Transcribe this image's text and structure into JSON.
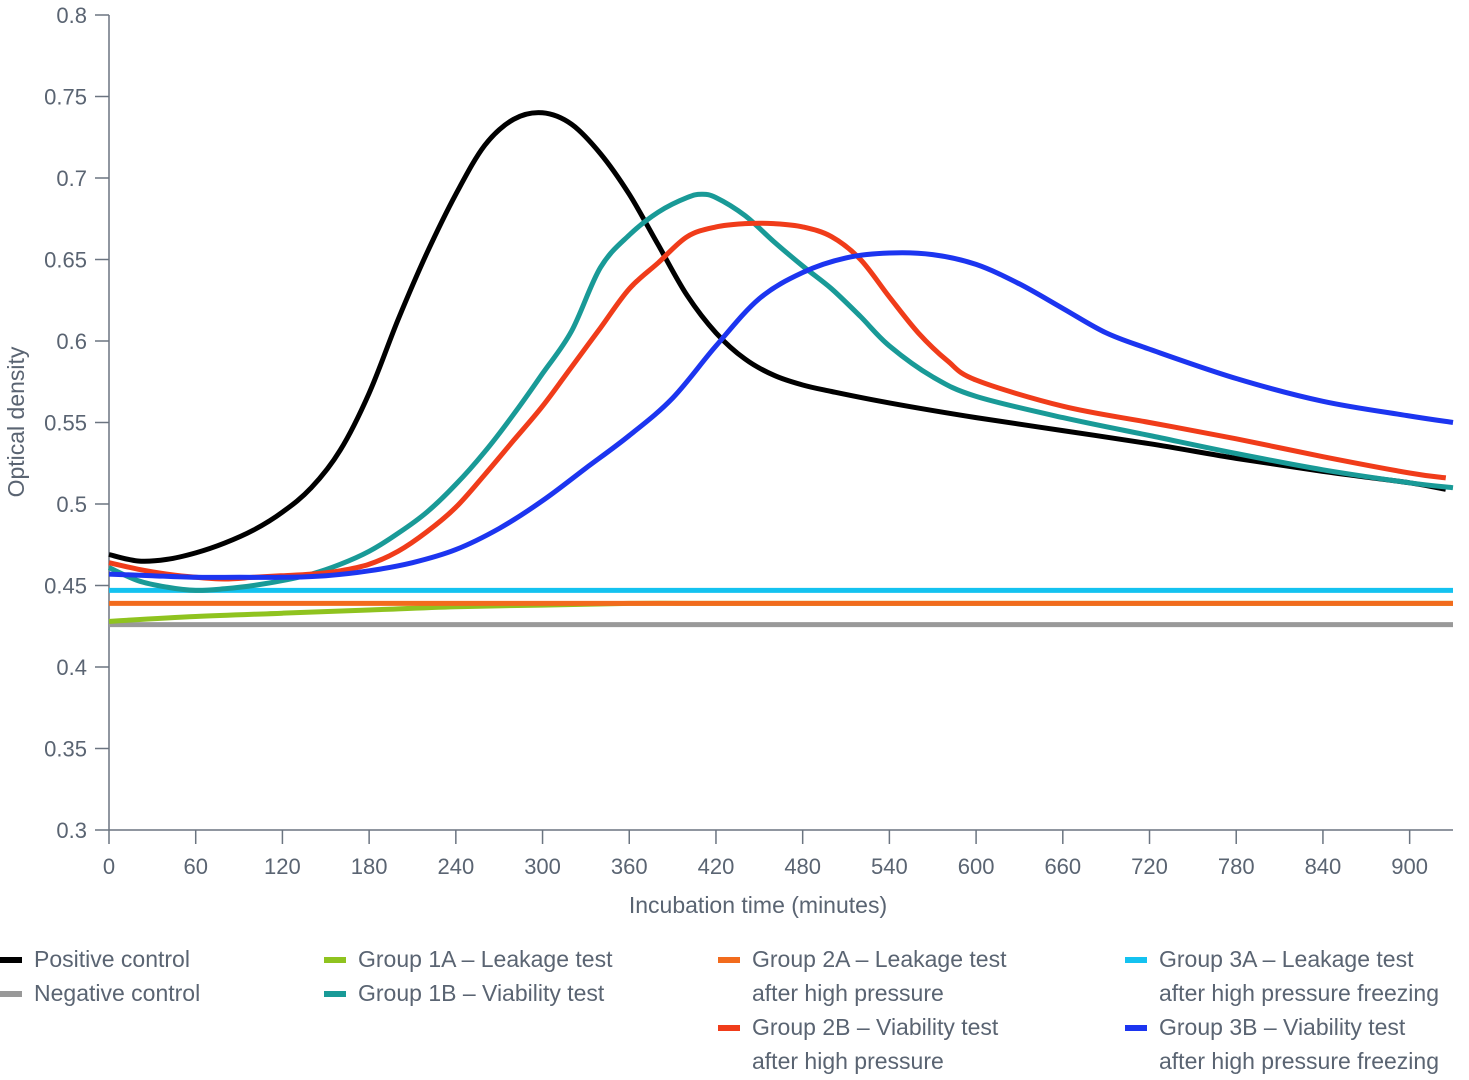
{
  "chart_data": {
    "type": "line",
    "xlabel": "Incubation time (minutes)",
    "ylabel": "Optical density",
    "xlim": [
      0,
      930
    ],
    "ylim": [
      0.3,
      0.8
    ],
    "xticks": [
      0,
      60,
      120,
      180,
      240,
      300,
      360,
      420,
      480,
      540,
      600,
      660,
      720,
      780,
      840,
      900
    ],
    "yticks": [
      0.3,
      0.35,
      0.4,
      0.45,
      0.5,
      0.55,
      0.6,
      0.65,
      0.7,
      0.75,
      0.8
    ],
    "ytick_labels": [
      "0.3",
      "0.35",
      "0.4",
      "0.45",
      "0.5",
      "0.55",
      "0.6",
      "0.65",
      "0.7",
      "0.75",
      "0.8"
    ],
    "grid": false,
    "legend_position": "bottom",
    "series": [
      {
        "name": "Positive control",
        "color": "#000000",
        "x": [
          0,
          20,
          40,
          60,
          80,
          100,
          120,
          140,
          160,
          180,
          200,
          220,
          240,
          260,
          280,
          300,
          320,
          340,
          360,
          380,
          400,
          420,
          440,
          460,
          480,
          500,
          540,
          600,
          660,
          720,
          780,
          840,
          900,
          925
        ],
        "y": [
          0.469,
          0.465,
          0.466,
          0.47,
          0.476,
          0.484,
          0.495,
          0.51,
          0.533,
          0.568,
          0.613,
          0.654,
          0.69,
          0.72,
          0.736,
          0.74,
          0.733,
          0.715,
          0.69,
          0.659,
          0.628,
          0.605,
          0.589,
          0.579,
          0.573,
          0.569,
          0.562,
          0.553,
          0.545,
          0.537,
          0.528,
          0.52,
          0.513,
          0.509
        ]
      },
      {
        "name": "Negative control",
        "color": "#999999",
        "x": [
          0,
          930
        ],
        "y": [
          0.426,
          0.426
        ]
      },
      {
        "name": "Group 1A – Leakage test",
        "color": "#8fc31f",
        "x": [
          0,
          60,
          120,
          180,
          240,
          300,
          360,
          420,
          480,
          600,
          720,
          840,
          930
        ],
        "y": [
          0.428,
          0.431,
          0.433,
          0.435,
          0.437,
          0.438,
          0.439,
          0.439,
          0.439,
          0.439,
          0.439,
          0.439,
          0.439
        ]
      },
      {
        "name": "Group 1B – Viability test",
        "color": "#199a97",
        "x": [
          0,
          20,
          40,
          60,
          80,
          100,
          120,
          140,
          160,
          180,
          200,
          220,
          240,
          260,
          280,
          300,
          320,
          340,
          360,
          380,
          400,
          410,
          420,
          440,
          460,
          480,
          500,
          520,
          540,
          570,
          600,
          660,
          720,
          780,
          840,
          900,
          930
        ],
        "y": [
          0.461,
          0.453,
          0.449,
          0.447,
          0.448,
          0.45,
          0.453,
          0.457,
          0.463,
          0.471,
          0.482,
          0.495,
          0.512,
          0.532,
          0.555,
          0.58,
          0.606,
          0.645,
          0.665,
          0.679,
          0.688,
          0.69,
          0.688,
          0.677,
          0.661,
          0.646,
          0.632,
          0.615,
          0.597,
          0.578,
          0.566,
          0.553,
          0.542,
          0.531,
          0.521,
          0.513,
          0.51
        ]
      },
      {
        "name": "Group 2A – Leakage test after high pressure",
        "color": "#f26b1d",
        "x": [
          0,
          930
        ],
        "y": [
          0.439,
          0.439
        ]
      },
      {
        "name": "Group 2B – Viability test after high pressure",
        "color": "#f03c1a",
        "x": [
          0,
          20,
          40,
          60,
          80,
          100,
          120,
          140,
          160,
          180,
          200,
          220,
          240,
          260,
          280,
          300,
          320,
          340,
          360,
          380,
          400,
          420,
          440,
          460,
          480,
          500,
          520,
          540,
          560,
          580,
          600,
          660,
          720,
          780,
          840,
          900,
          925
        ],
        "y": [
          0.464,
          0.46,
          0.457,
          0.455,
          0.454,
          0.455,
          0.456,
          0.457,
          0.459,
          0.463,
          0.471,
          0.483,
          0.498,
          0.518,
          0.539,
          0.56,
          0.584,
          0.608,
          0.632,
          0.648,
          0.664,
          0.67,
          0.672,
          0.672,
          0.67,
          0.664,
          0.65,
          0.627,
          0.605,
          0.588,
          0.576,
          0.56,
          0.55,
          0.54,
          0.529,
          0.519,
          0.516
        ]
      },
      {
        "name": "Group 3A – Leakage test after high pressure freezing",
        "color": "#14c2f0",
        "x": [
          0,
          930
        ],
        "y": [
          0.447,
          0.447
        ]
      },
      {
        "name": "Group 3B – Viability test after high pressure freezing",
        "color": "#1c35f0",
        "x": [
          0,
          30,
          60,
          90,
          120,
          150,
          180,
          210,
          240,
          270,
          300,
          330,
          360,
          390,
          420,
          450,
          480,
          510,
          540,
          570,
          600,
          630,
          660,
          690,
          720,
          780,
          840,
          900,
          930
        ],
        "y": [
          0.457,
          0.456,
          0.455,
          0.455,
          0.455,
          0.456,
          0.459,
          0.464,
          0.472,
          0.485,
          0.502,
          0.522,
          0.542,
          0.565,
          0.597,
          0.626,
          0.642,
          0.651,
          0.654,
          0.653,
          0.647,
          0.635,
          0.62,
          0.605,
          0.595,
          0.577,
          0.563,
          0.554,
          0.55
        ]
      }
    ]
  },
  "legend": {
    "items": [
      {
        "lines": [
          "Positive control"
        ],
        "color": "#000000"
      },
      {
        "lines": [
          "Negative control"
        ],
        "color": "#999999"
      },
      {
        "lines": [
          "Group 1A – Leakage test"
        ],
        "color": "#8fc31f"
      },
      {
        "lines": [
          "Group 1B – Viability test"
        ],
        "color": "#199a97"
      },
      {
        "lines": [
          "Group 2A – Leakage test",
          "after high pressure"
        ],
        "color": "#f26b1d"
      },
      {
        "lines": [
          "Group 2B – Viability test",
          "after high pressure"
        ],
        "color": "#f03c1a"
      },
      {
        "lines": [
          "Group 3A – Leakage test",
          "after high pressure freezing"
        ],
        "color": "#14c2f0"
      },
      {
        "lines": [
          "Group 3B – Viability test",
          "after high pressure freezing"
        ],
        "color": "#1c35f0"
      }
    ]
  }
}
